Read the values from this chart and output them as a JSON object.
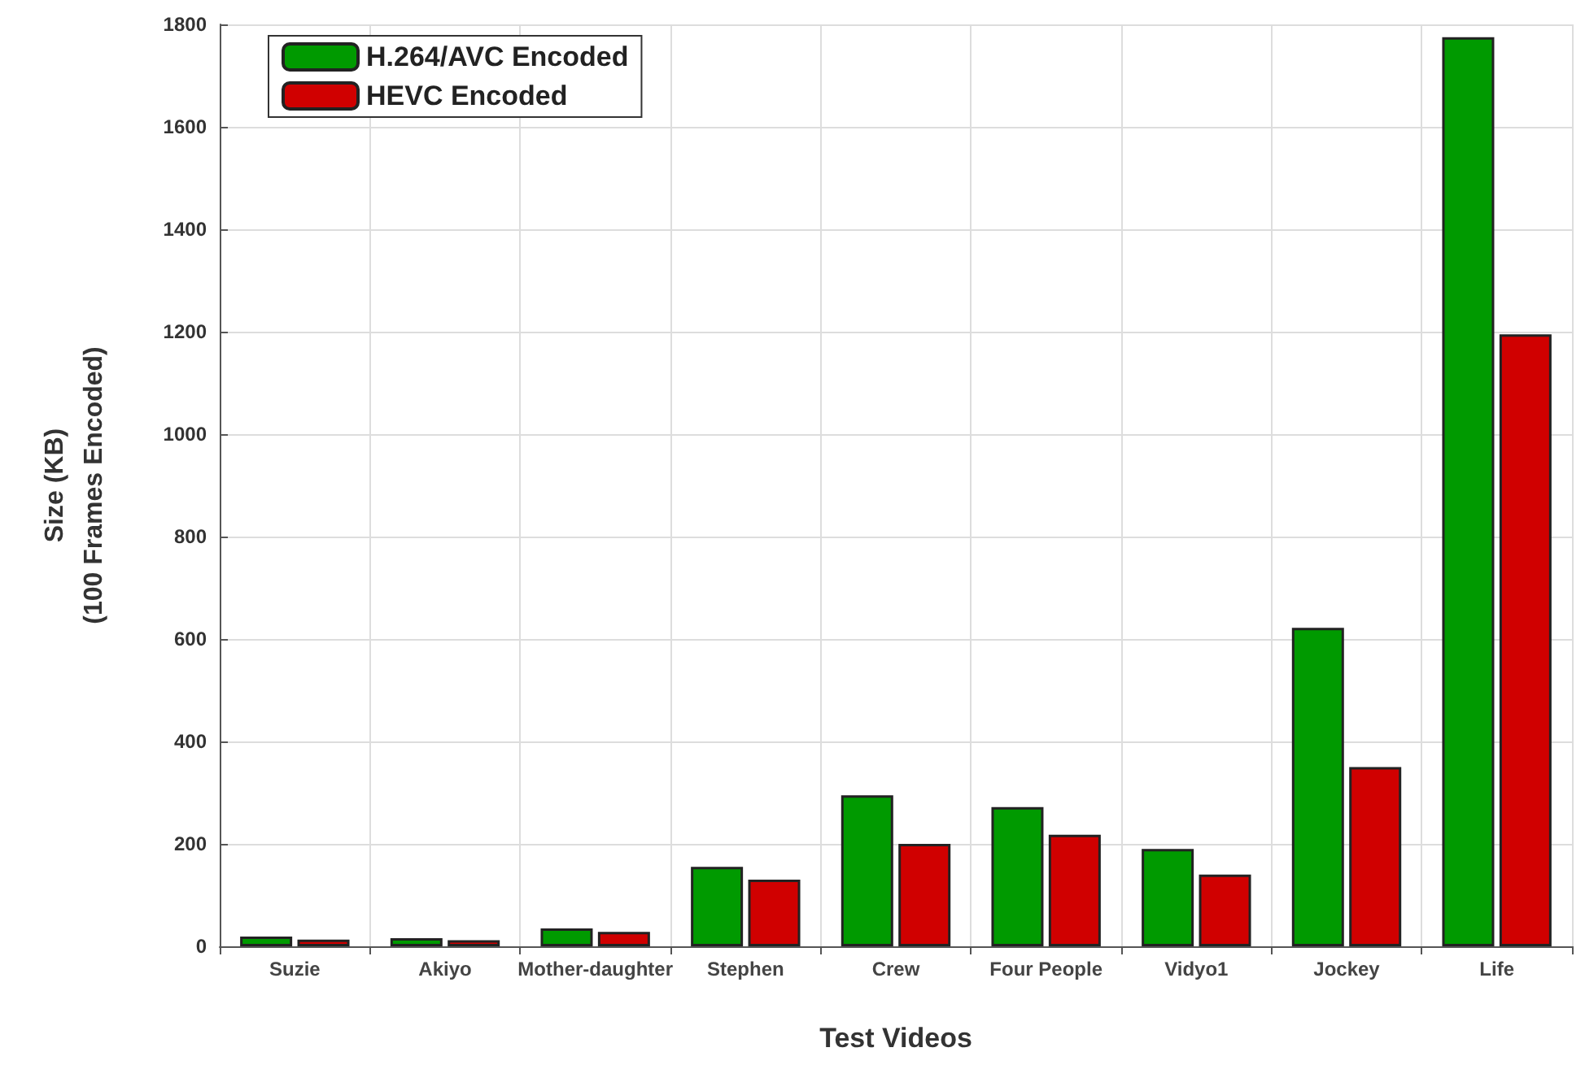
{
  "chart_data": {
    "type": "bar",
    "xlabel": "Test Videos",
    "ylabel": "Size (KB)\n(100 Frames Encoded)",
    "categories": [
      "Suzie",
      "Akiyo",
      "Mother-daughter",
      "Stephen",
      "Crew",
      "Four People",
      "Vidyo1",
      "Jockey",
      "Life"
    ],
    "series": [
      {
        "name": "H.264/AVC Encoded",
        "color": "#009a00",
        "values": [
          19,
          16,
          35,
          155,
          295,
          272,
          190,
          622,
          1775
        ]
      },
      {
        "name": "HEVC Encoded",
        "color": "#d00000",
        "values": [
          13,
          12,
          28,
          130,
          200,
          218,
          140,
          350,
          1195
        ]
      }
    ],
    "ylim": [
      0,
      1800
    ],
    "yticks": [
      0,
      200,
      400,
      600,
      800,
      1000,
      1200,
      1400,
      1600,
      1800
    ],
    "grid": true,
    "legend": "top left"
  }
}
